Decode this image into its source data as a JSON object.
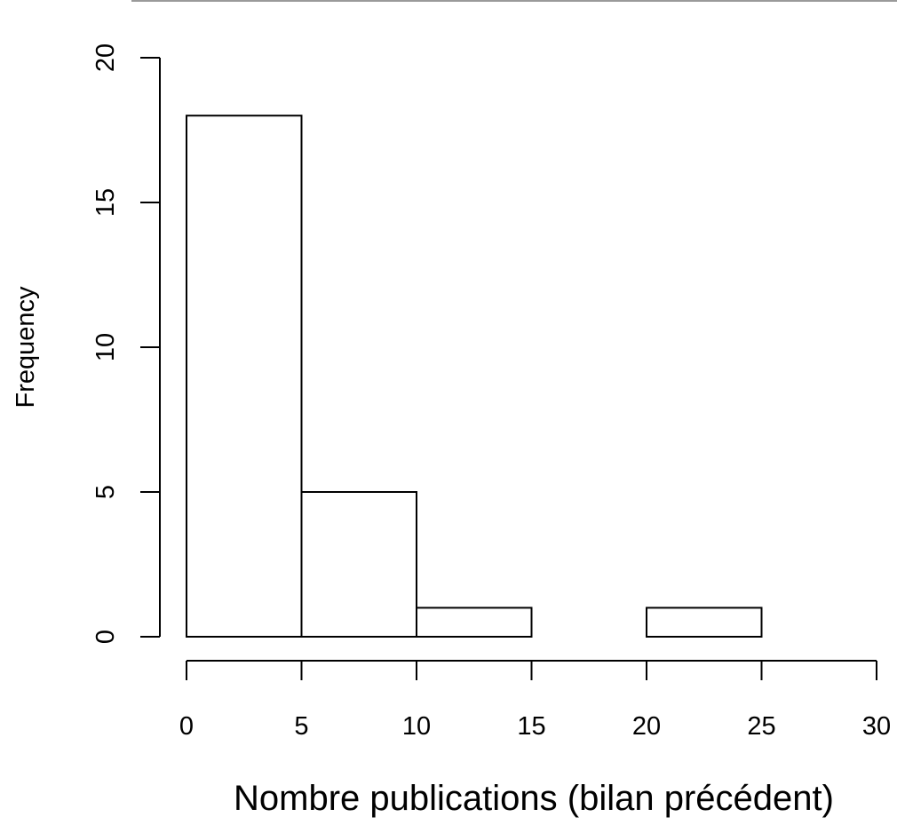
{
  "chart_data": {
    "type": "bar",
    "title": "",
    "xlabel": "Nombre publications (bilan précédent)",
    "ylabel": "Frequency",
    "bins": [
      {
        "x0": 0,
        "x1": 5,
        "count": 18
      },
      {
        "x0": 5,
        "x1": 10,
        "count": 5
      },
      {
        "x0": 10,
        "x1": 15,
        "count": 1
      },
      {
        "x0": 15,
        "x1": 20,
        "count": 0
      },
      {
        "x0": 20,
        "x1": 25,
        "count": 1
      }
    ],
    "xlim": [
      0,
      30
    ],
    "ylim": [
      0,
      20
    ],
    "xticks": [
      "0",
      "5",
      "10",
      "15",
      "20",
      "25",
      "30"
    ],
    "yticks": [
      "0",
      "5",
      "10",
      "15",
      "20"
    ],
    "grid": false,
    "bar_fill": "#ffffff",
    "bar_stroke": "#000000"
  }
}
